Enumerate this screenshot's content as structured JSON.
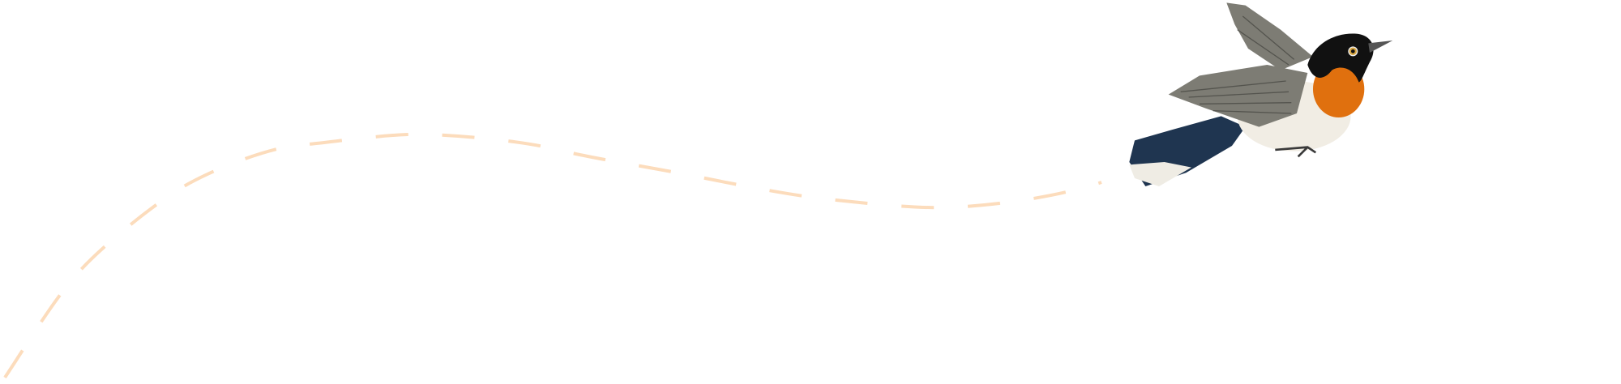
{
  "illustration": {
    "subject": "bird",
    "colors": {
      "flight_path": "#fcdcbc",
      "bird_back": "#1f3550",
      "bird_breast": "#e0700e",
      "bird_belly": "#f1ede4",
      "bird_wing": "#7d7c74",
      "bird_face": "#111111"
    }
  }
}
